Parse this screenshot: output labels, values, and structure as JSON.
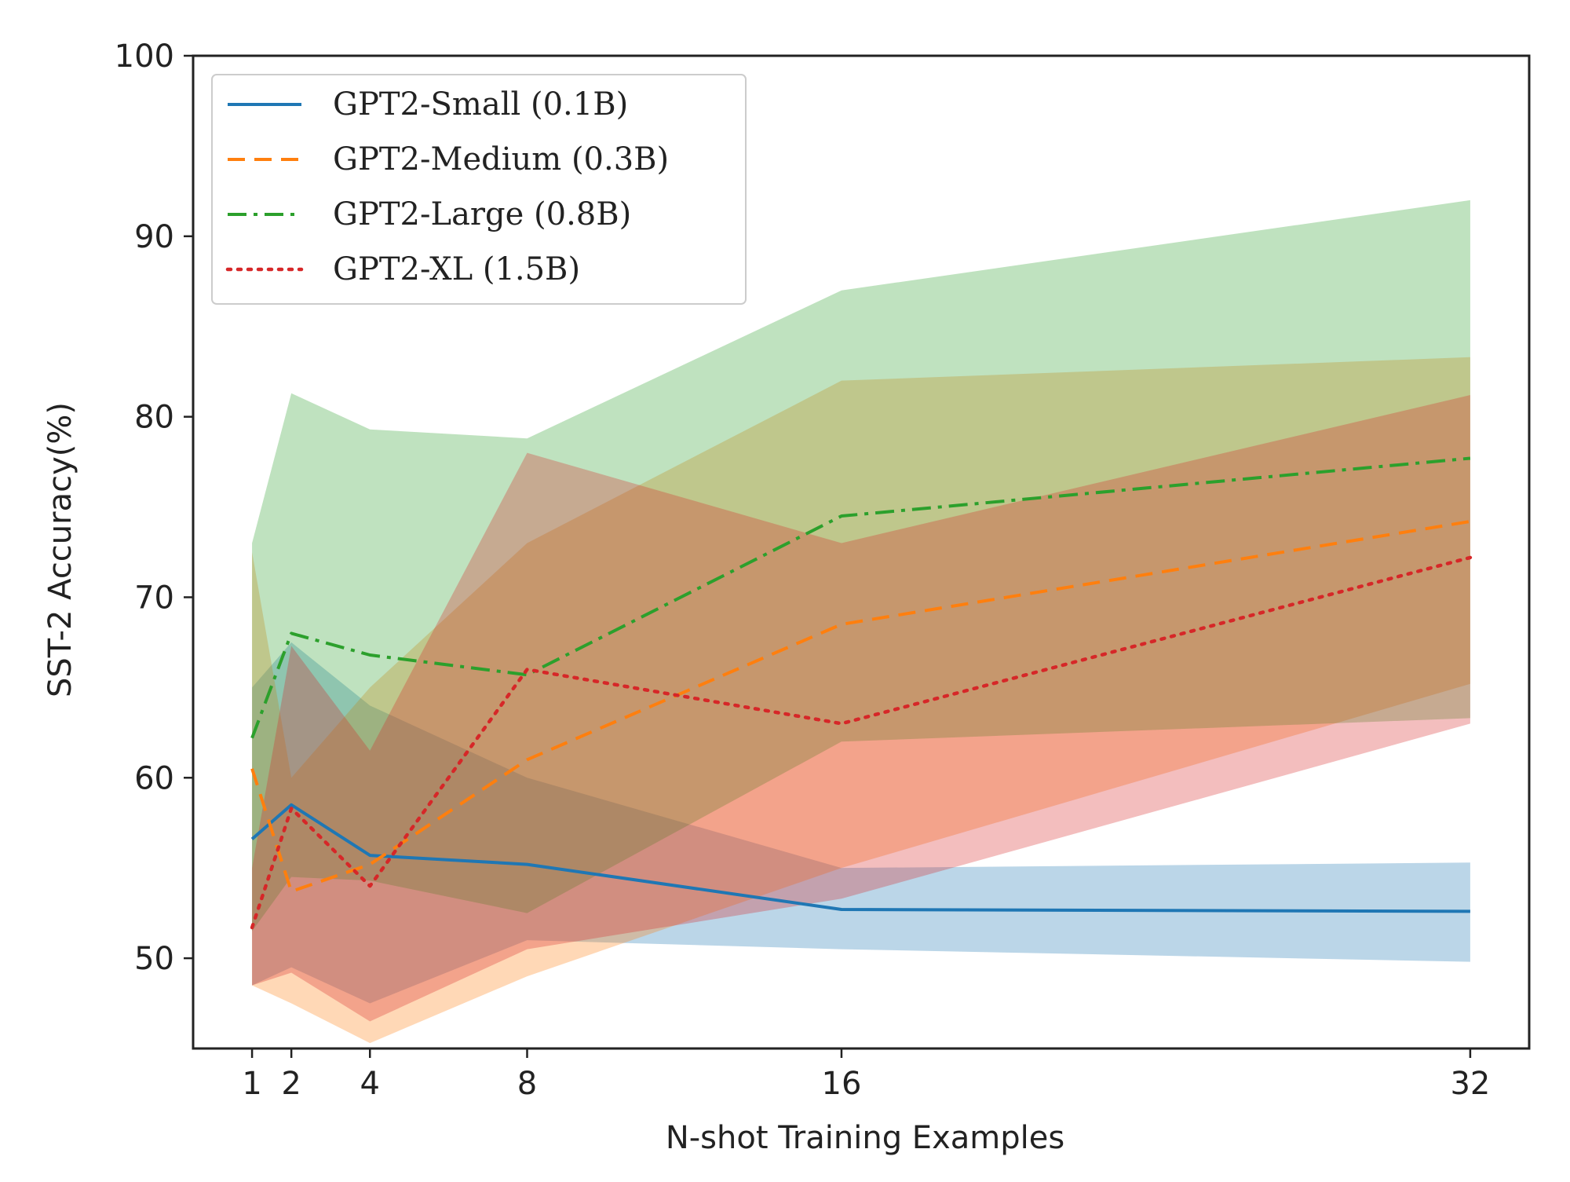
{
  "chart_data": {
    "type": "line",
    "title": "",
    "xlabel": "N-shot Training Examples",
    "ylabel": "SST-2 Accuracy(%)",
    "x": [
      1,
      2,
      4,
      8,
      16,
      32
    ],
    "xticks": [
      1,
      2,
      4,
      8,
      16,
      32
    ],
    "xlim": [
      -0.5,
      33.5
    ],
    "ylim": [
      45,
      100
    ],
    "yticks": [
      50,
      60,
      70,
      80,
      90,
      100
    ],
    "grid": false,
    "legend_position": "top-left",
    "series": [
      {
        "name": "GPT2-Small (0.1B)",
        "color": "#1f77b4",
        "dash": "solid",
        "values": [
          56.6,
          58.5,
          55.7,
          55.2,
          52.7,
          52.6
        ],
        "band_upper": [
          65.0,
          67.5,
          64.0,
          60.0,
          55.0,
          55.3
        ],
        "band_lower": [
          48.5,
          49.5,
          47.5,
          51.0,
          50.5,
          49.8
        ]
      },
      {
        "name": "GPT2-Medium (0.3B)",
        "color": "#ff7f0e",
        "dash": "dashed",
        "values": [
          60.5,
          53.7,
          55.2,
          61.0,
          68.5,
          74.2
        ],
        "band_upper": [
          72.5,
          60.0,
          65.0,
          73.0,
          82.0,
          83.3
        ],
        "band_lower": [
          48.5,
          47.5,
          45.3,
          49.0,
          55.0,
          65.2
        ]
      },
      {
        "name": "GPT2-Large (0.8B)",
        "color": "#2ca02c",
        "dash": "dashdot",
        "values": [
          62.2,
          68.0,
          66.8,
          65.7,
          74.5,
          77.7
        ],
        "band_upper": [
          73.0,
          81.3,
          79.3,
          78.8,
          87.0,
          92.0
        ],
        "band_lower": [
          51.5,
          54.5,
          54.3,
          52.5,
          62.0,
          63.3
        ]
      },
      {
        "name": "GPT2-XL (1.5B)",
        "color": "#d62728",
        "dash": "dotted",
        "values": [
          51.7,
          58.3,
          54.0,
          66.0,
          63.0,
          72.2
        ],
        "band_upper": [
          55.0,
          67.3,
          61.5,
          78.0,
          73.0,
          81.2
        ],
        "band_lower": [
          48.5,
          49.2,
          46.5,
          50.5,
          53.3,
          63.0
        ]
      }
    ]
  }
}
